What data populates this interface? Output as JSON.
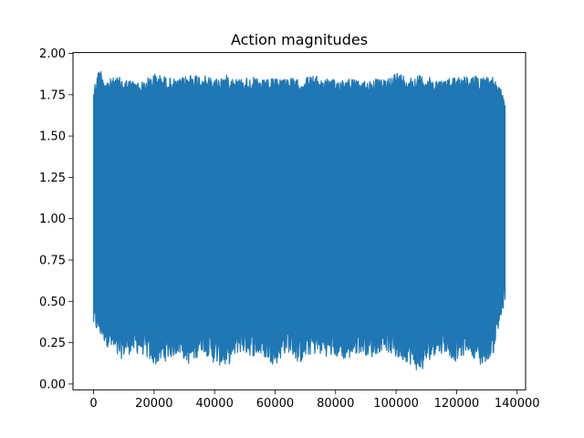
{
  "chart_data": {
    "type": "line",
    "title": "Action magnitudes",
    "xlabel": "",
    "ylabel": "",
    "xlim": [
      -6800,
      142800
    ],
    "ylim": [
      -0.035,
      2.005
    ],
    "x_ticks": [
      0,
      20000,
      40000,
      60000,
      80000,
      100000,
      120000,
      140000
    ],
    "x_tick_labels": [
      "0",
      "20000",
      "40000",
      "60000",
      "80000",
      "100000",
      "120000",
      "140000"
    ],
    "y_ticks": [
      0.0,
      0.25,
      0.5,
      0.75,
      1.0,
      1.25,
      1.5,
      1.75,
      2.0
    ],
    "y_tick_labels": [
      "0.00",
      "0.25",
      "0.50",
      "0.75",
      "1.00",
      "1.25",
      "1.50",
      "1.75",
      "2.00"
    ],
    "grid": false,
    "series": [
      {
        "color": "#1f77b4",
        "x_range": [
          0,
          136000
        ],
        "lower": {
          "x": [
            0,
            4000,
            8000,
            12000,
            16000,
            20000,
            24000,
            28000,
            32000,
            36000,
            40000,
            44000,
            48000,
            52000,
            56000,
            60000,
            64000,
            68000,
            72000,
            76000,
            80000,
            84000,
            88000,
            92000,
            96000,
            100000,
            104000,
            108000,
            112000,
            116000,
            120000,
            124000,
            128000,
            132000,
            136000
          ],
          "y": [
            0.33,
            0.24,
            0.14,
            0.18,
            0.18,
            0.11,
            0.14,
            0.18,
            0.11,
            0.2,
            0.12,
            0.1,
            0.19,
            0.17,
            0.16,
            0.11,
            0.2,
            0.12,
            0.18,
            0.17,
            0.16,
            0.14,
            0.19,
            0.16,
            0.21,
            0.15,
            0.13,
            0.06,
            0.17,
            0.19,
            0.13,
            0.2,
            0.1,
            0.18,
            0.47
          ]
        },
        "upper": {
          "x": [
            0,
            2000,
            4000,
            8000,
            12000,
            16000,
            20000,
            24000,
            28000,
            32000,
            36000,
            40000,
            44000,
            48000,
            52000,
            56000,
            60000,
            64000,
            68000,
            72000,
            76000,
            80000,
            84000,
            88000,
            92000,
            96000,
            100000,
            104000,
            108000,
            112000,
            116000,
            120000,
            124000,
            128000,
            132000,
            136000
          ],
          "y": [
            1.8,
            1.92,
            1.84,
            1.86,
            1.84,
            1.83,
            1.88,
            1.86,
            1.84,
            1.88,
            1.87,
            1.85,
            1.87,
            1.85,
            1.86,
            1.84,
            1.85,
            1.86,
            1.84,
            1.87,
            1.85,
            1.84,
            1.86,
            1.83,
            1.85,
            1.84,
            1.89,
            1.86,
            1.87,
            1.85,
            1.84,
            1.87,
            1.86,
            1.87,
            1.86,
            1.74
          ]
        }
      }
    ]
  }
}
